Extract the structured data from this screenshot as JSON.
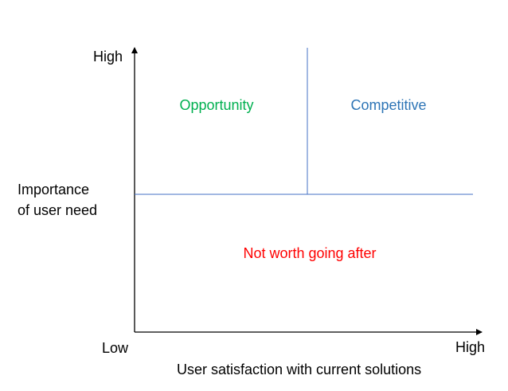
{
  "y_axis": {
    "high_label": "High",
    "title_lines": [
      "Importance",
      "of user need"
    ]
  },
  "x_axis": {
    "low_label": "Low",
    "high_label": "High",
    "title": "User satisfaction with current solutions"
  },
  "quadrants": {
    "opportunity": {
      "label": "Opportunity",
      "color": "#00B050"
    },
    "competitive": {
      "label": "Competitive",
      "color": "#2E75B6"
    },
    "not_worth": {
      "label": "Not worth going after",
      "color": "#FF0000"
    }
  },
  "colors": {
    "axis": "#000000",
    "divider": "#4472C4"
  }
}
